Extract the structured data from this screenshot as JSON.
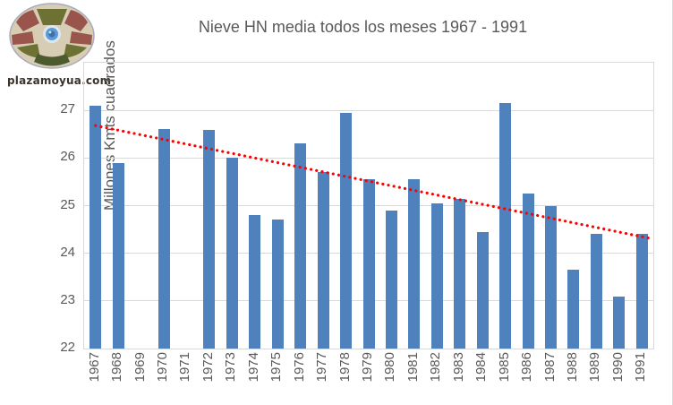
{
  "logo": {
    "caption": "plazamoyua.com"
  },
  "colors": {
    "bar": "#4F81BD",
    "trendline": "#FF0000",
    "gridline": "#D9D9D9",
    "text": "#595959",
    "background": "#FFFFFF"
  },
  "chart_data": {
    "type": "bar",
    "title": "Nieve HN media todos los meses 1967 - 1991",
    "xlabel": "",
    "ylabel": "Millones Kmts cuadrados",
    "categories": [
      1967,
      1968,
      1969,
      1970,
      1971,
      1972,
      1973,
      1974,
      1975,
      1976,
      1977,
      1978,
      1979,
      1980,
      1981,
      1982,
      1983,
      1984,
      1985,
      1986,
      1987,
      1988,
      1989,
      1990,
      1991
    ],
    "values": [
      27.1,
      25.9,
      null,
      26.6,
      null,
      26.58,
      26.0,
      24.8,
      24.7,
      26.3,
      25.7,
      26.95,
      25.55,
      24.9,
      25.55,
      25.05,
      25.15,
      24.45,
      27.15,
      25.25,
      25.0,
      23.65,
      24.4,
      23.1,
      24.4
    ],
    "missing_years": [
      1969,
      1971
    ],
    "ylim": [
      22,
      28
    ],
    "yticks": [
      22,
      23,
      24,
      25,
      26,
      27
    ],
    "grid": true,
    "legend": "none",
    "trendline": {
      "style": "dotted",
      "color": "#FF0000",
      "start_year": 1967,
      "start_value": 26.68,
      "end_year": 1991,
      "end_value": 24.3
    }
  }
}
